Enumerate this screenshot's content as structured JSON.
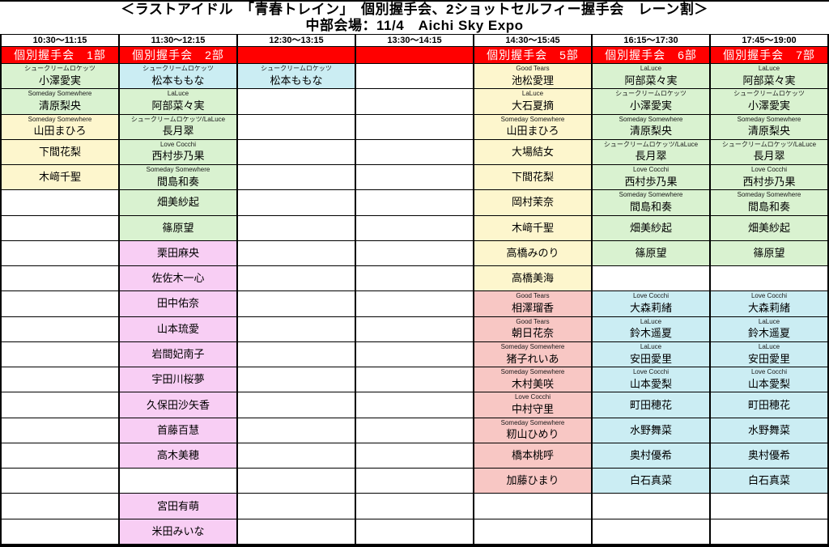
{
  "title": "＜ラストアイドル　「青春トレイン」　個別握手会、2ショットセルフィー握手会　レーン割＞",
  "subtitle": "中部会場：11/4　Aichi Sky Expo",
  "colors": {
    "session_red": "#ff0000",
    "green": "#d9f2d0",
    "cyan": "#cbedf3",
    "yellow": "#fdf6cd",
    "pink": "#f8cef4",
    "salmon": "#f8c7c4",
    "white": "#ffffff",
    "grid_line": "#000000",
    "session_text": "#ffffff"
  },
  "columns": [
    {
      "time": "10:30～11:15",
      "session": "個別握手会　1部",
      "cells": [
        {
          "group": "シュークリームロケッツ",
          "name": "小澤愛実",
          "color": "green"
        },
        {
          "group": "Someday Somewhere",
          "name": "清原梨央",
          "color": "green"
        },
        {
          "group": "Someday Somewhere",
          "name": "山田まひろ",
          "color": "yellow"
        },
        {
          "name": "下間花梨",
          "color": "yellow"
        },
        {
          "name": "木﨑千聖",
          "color": "yellow"
        },
        null,
        null,
        null,
        null,
        null,
        null,
        null,
        null,
        null,
        null,
        null,
        null,
        null,
        null
      ]
    },
    {
      "time": "11:30～12:15",
      "session": "個別握手会　2部",
      "cells": [
        {
          "group": "シュークリームロケッツ",
          "name": "松本ももな",
          "color": "cyan"
        },
        {
          "group": "LaLuce",
          "name": "阿部菜々実",
          "color": "green"
        },
        {
          "group": "シュークリームロケッツ/LaLuce",
          "name": "長月翠",
          "color": "green"
        },
        {
          "group": "Love Cocchi",
          "name": "西村歩乃果",
          "color": "green"
        },
        {
          "group": "Someday Somewhere",
          "name": "間島和奏",
          "color": "green"
        },
        {
          "name": "畑美紗起",
          "color": "green"
        },
        {
          "name": "篠原望",
          "color": "green"
        },
        {
          "name": "栗田麻央",
          "color": "pink"
        },
        {
          "name": "佐佐木一心",
          "color": "pink"
        },
        {
          "name": "田中佑奈",
          "color": "pink"
        },
        {
          "name": "山本琉愛",
          "color": "pink"
        },
        {
          "name": "岩間妃南子",
          "color": "pink"
        },
        {
          "name": "宇田川桜夢",
          "color": "pink"
        },
        {
          "name": "久保田沙矢香",
          "color": "pink"
        },
        {
          "name": "首藤百慧",
          "color": "pink"
        },
        {
          "name": "高木美穂",
          "color": "pink"
        },
        null,
        {
          "name": "宮田有萌",
          "color": "pink"
        },
        {
          "name": "米田みいな",
          "color": "pink"
        }
      ]
    },
    {
      "time": "12:30～13:15",
      "session": "",
      "cells": [
        {
          "group": "シュークリームロケッツ",
          "name": "松本ももな",
          "color": "cyan"
        },
        null,
        null,
        null,
        null,
        null,
        null,
        null,
        null,
        null,
        null,
        null,
        null,
        null,
        null,
        null,
        null,
        null,
        null
      ]
    },
    {
      "time": "13:30～14:15",
      "session": "",
      "cells": [
        null,
        null,
        null,
        null,
        null,
        null,
        null,
        null,
        null,
        null,
        null,
        null,
        null,
        null,
        null,
        null,
        null,
        null,
        null
      ]
    },
    {
      "time": "14:30～15:45",
      "session": "個別握手会　5部",
      "cells": [
        {
          "group": "Good Tears",
          "name": "池松愛理",
          "color": "yellow"
        },
        {
          "group": "LaLuce",
          "name": "大石夏摘",
          "color": "yellow"
        },
        {
          "group": "Someday Somewhere",
          "name": "山田まひろ",
          "color": "yellow"
        },
        {
          "name": "大場結女",
          "color": "yellow"
        },
        {
          "name": "下間花梨",
          "color": "yellow"
        },
        {
          "name": "岡村茉奈",
          "color": "yellow"
        },
        {
          "name": "木﨑千聖",
          "color": "yellow"
        },
        {
          "name": "高橋みのり",
          "color": "yellow"
        },
        {
          "name": "高橋美海",
          "color": "yellow"
        },
        {
          "group": "Good Tears",
          "name": "相澤瑠香",
          "color": "salmon"
        },
        {
          "group": "Good Tears",
          "name": "朝日花奈",
          "color": "salmon"
        },
        {
          "group": "Someday Somewhere",
          "name": "猪子れいあ",
          "color": "salmon"
        },
        {
          "group": "Someday Somewhere",
          "name": "木村美咲",
          "color": "salmon"
        },
        {
          "group": "Love Cocchi",
          "name": "中村守里",
          "color": "salmon"
        },
        {
          "group": "Someday Somewhere",
          "name": "籾山ひめり",
          "color": "salmon"
        },
        {
          "name": "橋本桃呼",
          "color": "salmon"
        },
        {
          "name": "加藤ひまり",
          "color": "salmon"
        },
        null,
        null
      ]
    },
    {
      "time": "16:15～17:30",
      "session": "個別握手会　6部",
      "cells": [
        {
          "group": "LaLuce",
          "name": "阿部菜々実",
          "color": "green"
        },
        {
          "group": "シュークリームロケッツ",
          "name": "小澤愛実",
          "color": "green"
        },
        {
          "group": "Someday Somewhere",
          "name": "清原梨央",
          "color": "green"
        },
        {
          "group": "シュークリームロケッツ/LaLuce",
          "name": "長月翠",
          "color": "green"
        },
        {
          "group": "Love Cocchi",
          "name": "西村歩乃果",
          "color": "green"
        },
        {
          "group": "Someday Somewhere",
          "name": "間島和奏",
          "color": "green"
        },
        {
          "name": "畑美紗起",
          "color": "green"
        },
        {
          "name": "篠原望",
          "color": "green"
        },
        null,
        {
          "group": "Love Cocchi",
          "name": "大森莉緒",
          "color": "cyan"
        },
        {
          "group": "LaLuce",
          "name": "鈴木遥夏",
          "color": "cyan"
        },
        {
          "group": "LaLuce",
          "name": "安田愛里",
          "color": "cyan"
        },
        {
          "group": "Love Cocchi",
          "name": "山本愛梨",
          "color": "cyan"
        },
        {
          "name": "町田穂花",
          "color": "cyan"
        },
        {
          "name": "水野舞菜",
          "color": "cyan"
        },
        {
          "name": "奥村優希",
          "color": "cyan"
        },
        {
          "name": "白石真菜",
          "color": "cyan"
        },
        null,
        null
      ]
    },
    {
      "time": "17:45～19:00",
      "session": "個別握手会　7部",
      "cells": [
        {
          "group": "LaLuce",
          "name": "阿部菜々実",
          "color": "green"
        },
        {
          "group": "シュークリームロケッツ",
          "name": "小澤愛実",
          "color": "green"
        },
        {
          "group": "Someday Somewhere",
          "name": "清原梨央",
          "color": "green"
        },
        {
          "group": "シュークリームロケッツ/LaLuce",
          "name": "長月翠",
          "color": "green"
        },
        {
          "group": "Love Cocchi",
          "name": "西村歩乃果",
          "color": "green"
        },
        {
          "group": "Someday Somewhere",
          "name": "間島和奏",
          "color": "green"
        },
        {
          "name": "畑美紗起",
          "color": "green"
        },
        {
          "name": "篠原望",
          "color": "green"
        },
        null,
        {
          "group": "Love Cocchi",
          "name": "大森莉緒",
          "color": "cyan"
        },
        {
          "group": "LaLuce",
          "name": "鈴木遥夏",
          "color": "cyan"
        },
        {
          "group": "LaLuce",
          "name": "安田愛里",
          "color": "cyan"
        },
        {
          "group": "Love Cocchi",
          "name": "山本愛梨",
          "color": "cyan"
        },
        {
          "name": "町田穂花",
          "color": "cyan"
        },
        {
          "name": "水野舞菜",
          "color": "cyan"
        },
        {
          "name": "奥村優希",
          "color": "cyan"
        },
        {
          "name": "白石真菜",
          "color": "cyan"
        },
        null,
        null
      ]
    }
  ]
}
